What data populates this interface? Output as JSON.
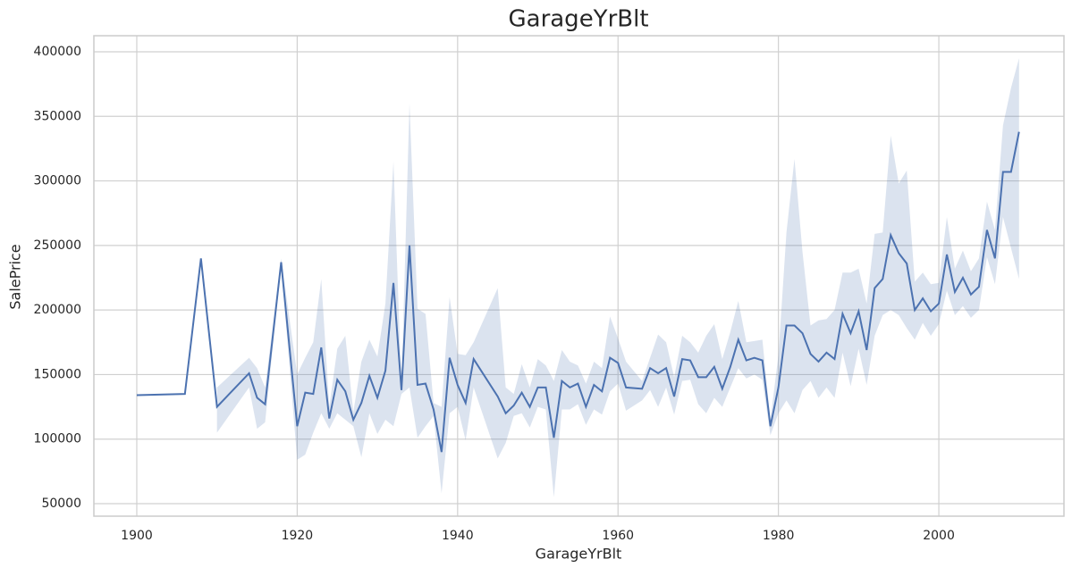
{
  "chart_data": {
    "type": "line",
    "title": "GarageYrBlt",
    "xlabel": "GarageYrBlt",
    "ylabel": "SalePrice",
    "x": [
      1900,
      1906,
      1908,
      1910,
      1914,
      1915,
      1916,
      1918,
      1920,
      1921,
      1922,
      1923,
      1924,
      1925,
      1926,
      1927,
      1928,
      1929,
      1930,
      1931,
      1932,
      1933,
      1934,
      1935,
      1936,
      1937,
      1938,
      1939,
      1940,
      1941,
      1942,
      1945,
      1946,
      1947,
      1948,
      1949,
      1950,
      1951,
      1952,
      1953,
      1954,
      1955,
      1956,
      1957,
      1958,
      1959,
      1960,
      1961,
      1963,
      1964,
      1965,
      1966,
      1967,
      1968,
      1969,
      1970,
      1971,
      1972,
      1973,
      1974,
      1975,
      1976,
      1977,
      1978,
      1979,
      1980,
      1981,
      1982,
      1983,
      1984,
      1985,
      1986,
      1987,
      1988,
      1989,
      1990,
      1991,
      1992,
      1993,
      1994,
      1995,
      1996,
      1997,
      1998,
      1999,
      2000,
      2001,
      2002,
      2003,
      2004,
      2005,
      2006,
      2007,
      2008,
      2009,
      2010
    ],
    "series": [
      {
        "color": "#4c72b0",
        "values": [
          134000,
          135000,
          240000,
          125000,
          151000,
          132000,
          127000,
          237000,
          110000,
          136000,
          135000,
          171000,
          116000,
          146000,
          137000,
          115000,
          128000,
          149000,
          132000,
          153000,
          221000,
          138000,
          250000,
          142000,
          143000,
          123000,
          90000,
          163000,
          142000,
          128000,
          162000,
          133000,
          120000,
          126000,
          136000,
          125000,
          140000,
          140000,
          101000,
          145000,
          140000,
          143000,
          125000,
          142000,
          137000,
          163000,
          159000,
          140000,
          139000,
          155000,
          151000,
          155000,
          133000,
          162000,
          161000,
          148000,
          148000,
          156000,
          139000,
          156000,
          177000,
          161000,
          163000,
          161000,
          110000,
          140000,
          188000,
          188000,
          182000,
          166000,
          160000,
          167000,
          162000,
          197000,
          182000,
          199000,
          169000,
          217000,
          224000,
          258000,
          244000,
          236000,
          200000,
          209000,
          199000,
          205000,
          243000,
          214000,
          225000,
          212000,
          218000,
          262000,
          240000,
          307000,
          307000,
          338000
        ],
        "lower": [
          null,
          null,
          null,
          105000,
          140000,
          108000,
          113000,
          234000,
          84000,
          88000,
          105000,
          120000,
          108000,
          120000,
          115000,
          110000,
          86000,
          120000,
          104000,
          115000,
          110000,
          135000,
          140000,
          101000,
          110000,
          118000,
          58000,
          120000,
          125000,
          99000,
          140000,
          85000,
          97000,
          118000,
          120000,
          109000,
          125000,
          123000,
          55000,
          123000,
          123000,
          127000,
          111000,
          123000,
          119000,
          137000,
          143000,
          122000,
          130000,
          138000,
          125000,
          140000,
          119000,
          145000,
          146000,
          127000,
          120000,
          132000,
          125000,
          140000,
          155000,
          147000,
          150000,
          146000,
          103000,
          120000,
          130000,
          120000,
          138000,
          145000,
          132000,
          140000,
          132000,
          167000,
          141000,
          170000,
          142000,
          180000,
          196000,
          200000,
          196000,
          186000,
          177000,
          190000,
          180000,
          189000,
          215000,
          196000,
          203000,
          194000,
          200000,
          241000,
          220000,
          272000,
          248000,
          224000
        ],
        "upper": [
          null,
          null,
          null,
          140000,
          163000,
          155000,
          140000,
          240000,
          150000,
          163000,
          175000,
          224000,
          125000,
          170000,
          180000,
          121000,
          160000,
          177000,
          164000,
          205000,
          315000,
          140000,
          360000,
          201000,
          197000,
          128000,
          125000,
          210000,
          166000,
          165000,
          175000,
          217000,
          140000,
          135000,
          158000,
          140000,
          162000,
          157000,
          145000,
          169000,
          160000,
          157000,
          143000,
          160000,
          155000,
          195000,
          178000,
          160000,
          145000,
          163000,
          181000,
          175000,
          148000,
          180000,
          175000,
          167000,
          180000,
          189000,
          162000,
          183000,
          207000,
          175000,
          176000,
          177000,
          115000,
          165000,
          260000,
          317000,
          245000,
          188000,
          192000,
          193000,
          200000,
          229000,
          229000,
          232000,
          205000,
          259000,
          260000,
          335000,
          298000,
          308000,
          222000,
          229000,
          220000,
          221000,
          272000,
          232000,
          246000,
          230000,
          240000,
          284000,
          262000,
          343000,
          372000,
          395000
        ]
      }
    ],
    "xlim": [
      1894.65,
      2015.6
    ],
    "ylim": [
      40316,
      412450
    ],
    "xticks": [
      1900,
      1920,
      1940,
      1960,
      1980,
      2000
    ],
    "yticks": [
      50000,
      100000,
      150000,
      200000,
      250000,
      300000,
      350000,
      400000
    ],
    "grid": true
  }
}
